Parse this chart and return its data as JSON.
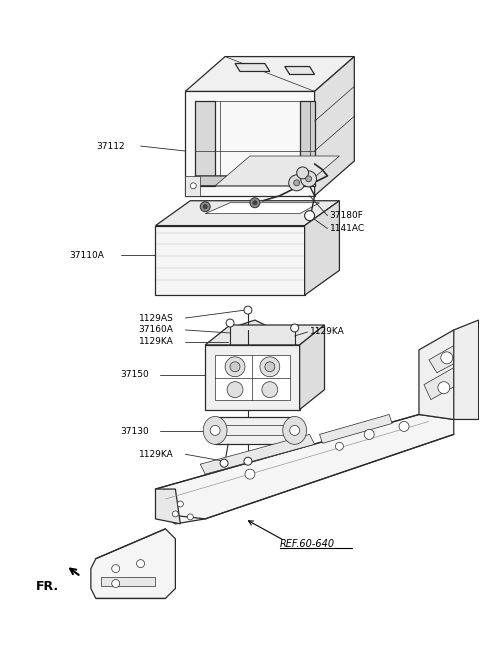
{
  "fig_width": 4.8,
  "fig_height": 6.55,
  "dpi": 100,
  "bg_color": "#ffffff",
  "line_color": "#2a2a2a",
  "lw_main": 0.9,
  "lw_thin": 0.5,
  "label_fontsize": 6.5,
  "parts": {
    "cover_label": "37112",
    "battery_label": "37110A",
    "cable_label": "37180F",
    "bolt_label": "1141AC",
    "screw1_label": "1129AS",
    "bracket_top_label": "37160A",
    "nut1_label": "1129KA",
    "nut2_label": "1129KA",
    "tray_label": "37150",
    "clamp_label": "37130",
    "nut3_label": "1129KA",
    "ref_label": "REF.60-640",
    "fr_label": "FR."
  }
}
